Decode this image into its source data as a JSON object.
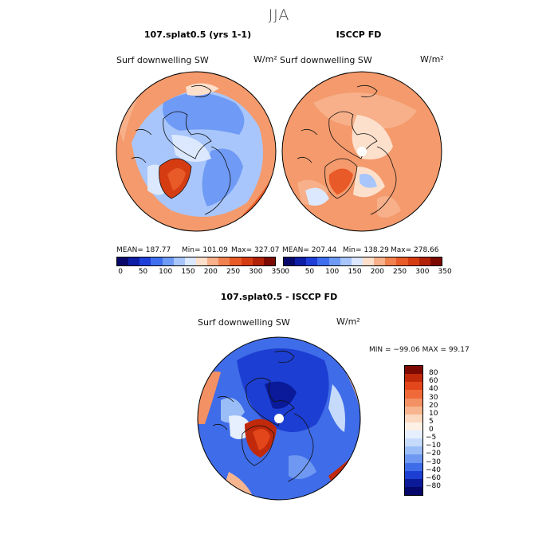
{
  "figure": {
    "season": "JJA"
  },
  "panels": [
    {
      "title": "107.splat0.5 (yrs 1-1)",
      "variable": "Surf downwelling SW",
      "units": "W/m²",
      "mean_label": "MEAN= 187.77",
      "min_label": "Min= 101.09",
      "max_label": "Max= 327.07",
      "stats": {
        "mean": 187.77,
        "min": 101.09,
        "max": 327.07
      }
    },
    {
      "title": "ISCCP FD",
      "variable": "Surf downwelling SW",
      "units": "W/m²",
      "mean_label": "MEAN= 207.44",
      "min_label": "Min= 138.29",
      "max_label": "Max= 278.66",
      "stats": {
        "mean": 207.44,
        "min": 138.29,
        "max": 278.66
      }
    }
  ],
  "diff_panel": {
    "title": "107.splat0.5 - ISCCP FD",
    "variable": "Surf downwelling SW",
    "units": "W/m²",
    "minmax_label": "MIN = −99.06 MAX =  99.17",
    "stats": {
      "min": -99.06,
      "max": 99.17
    }
  },
  "colorbar_top": {
    "ticks": [
      "0",
      "50",
      "100",
      "150",
      "200",
      "250",
      "300",
      "350"
    ],
    "colors": [
      "#08086b",
      "#0c1ea6",
      "#1f3fd8",
      "#3f6ff0",
      "#6f9af5",
      "#a8c6fb",
      "#dbe8fd",
      "#fde0cb",
      "#f7b08a",
      "#f1814f",
      "#e85a28",
      "#d63c12",
      "#b12208",
      "#7c0a02"
    ]
  },
  "colorbar_diff": {
    "ticks": [
      "80",
      "60",
      "40",
      "30",
      "20",
      "10",
      "5",
      "0",
      "−5",
      "−10",
      "−20",
      "−30",
      "−40",
      "−60",
      "−80"
    ],
    "colors": [
      "#7c0a02",
      "#c0290a",
      "#e2461a",
      "#ef6a38",
      "#f39064",
      "#f7b58f",
      "#fbd8c0",
      "#fdf0e6",
      "#e6effd",
      "#c6dafb",
      "#9bbdf7",
      "#6e98f2",
      "#3f6ce8",
      "#1c3ed2",
      "#0a1a98",
      "#05086a"
    ]
  }
}
